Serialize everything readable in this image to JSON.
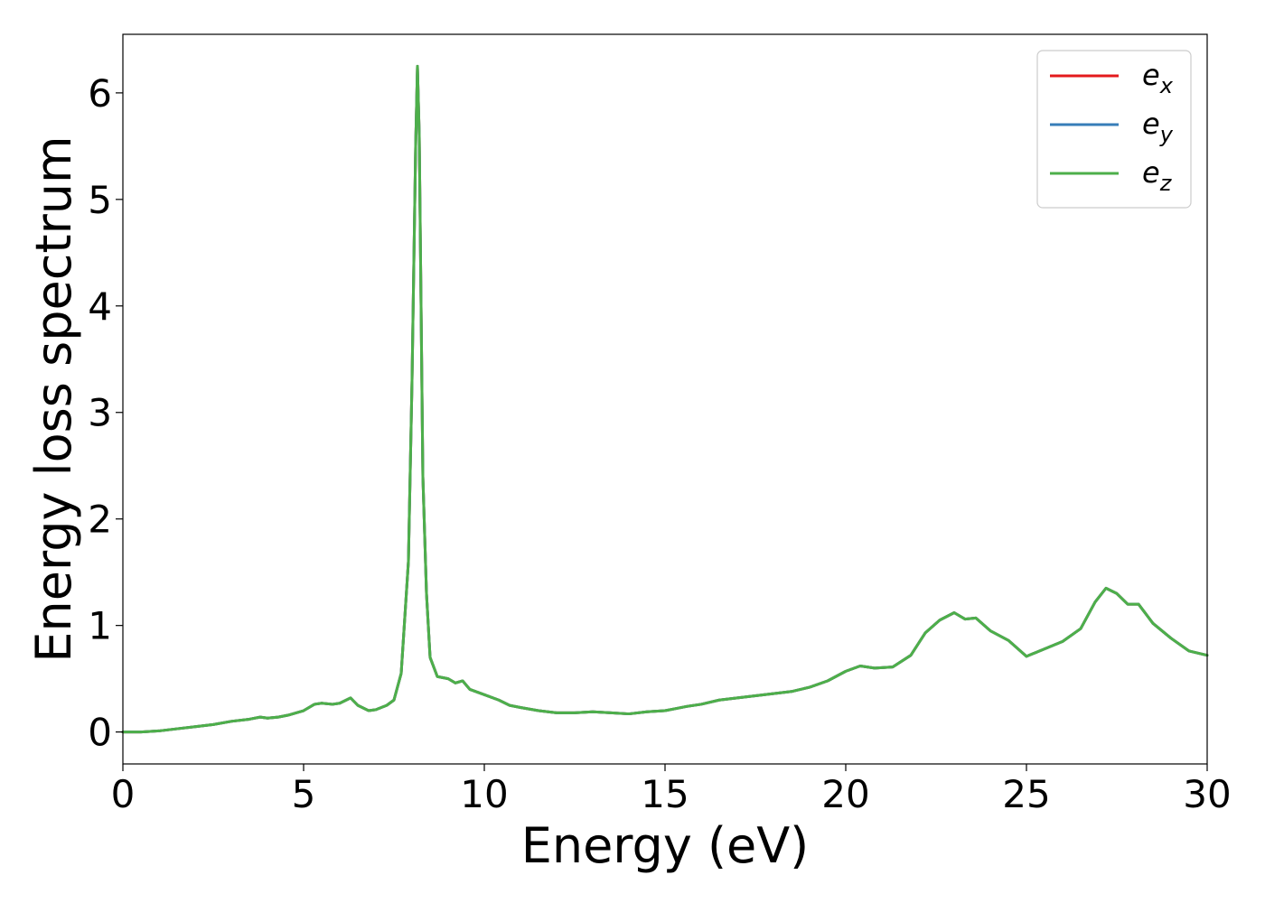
{
  "chart_data": {
    "type": "line",
    "title": "",
    "xlabel": "Energy (eV)",
    "ylabel": "Energy loss spectrum",
    "xlim": [
      0,
      30
    ],
    "ylim": [
      -0.3,
      6.55
    ],
    "xticks": [
      0,
      5,
      10,
      15,
      20,
      25,
      30
    ],
    "yticks": [
      0,
      1,
      2,
      3,
      4,
      5,
      6
    ],
    "grid": false,
    "legend_position": "top-right",
    "legend": [
      {
        "base": "e",
        "sub": "x",
        "color": "#e41a1c"
      },
      {
        "base": "e",
        "sub": "y",
        "color": "#377eb8"
      },
      {
        "base": "e",
        "sub": "z",
        "color": "#4daf4a"
      }
    ],
    "x": [
      0,
      0.5,
      1,
      1.5,
      2,
      2.5,
      3,
      3.5,
      3.8,
      4,
      4.3,
      4.6,
      5,
      5.3,
      5.5,
      5.8,
      6,
      6.3,
      6.5,
      6.8,
      7,
      7.3,
      7.5,
      7.7,
      7.9,
      8.0,
      8.1,
      8.15,
      8.2,
      8.25,
      8.3,
      8.4,
      8.5,
      8.7,
      9.0,
      9.2,
      9.4,
      9.6,
      10,
      10.4,
      10.7,
      11,
      11.5,
      12,
      12.5,
      13,
      13.5,
      14,
      14.5,
      15,
      15.3,
      15.6,
      16,
      16.5,
      17,
      17.5,
      18,
      18.5,
      19,
      19.5,
      20,
      20.4,
      20.8,
      21.3,
      21.8,
      22.2,
      22.6,
      23.0,
      23.3,
      23.6,
      24.0,
      24.5,
      25.0,
      25.5,
      26.0,
      26.5,
      26.9,
      27.2,
      27.5,
      27.8,
      28.1,
      28.5,
      29.0,
      29.5,
      30.0
    ],
    "series": [
      {
        "name": "e_x",
        "color": "#e41a1c",
        "values": [
          0,
          0,
          0.01,
          0.03,
          0.05,
          0.07,
          0.1,
          0.12,
          0.14,
          0.13,
          0.14,
          0.16,
          0.2,
          0.26,
          0.27,
          0.26,
          0.27,
          0.32,
          0.25,
          0.2,
          0.21,
          0.25,
          0.3,
          0.55,
          1.6,
          3.3,
          5.5,
          6.25,
          5.6,
          4.0,
          2.4,
          1.3,
          0.7,
          0.52,
          0.5,
          0.46,
          0.48,
          0.4,
          0.35,
          0.3,
          0.25,
          0.23,
          0.2,
          0.18,
          0.18,
          0.19,
          0.18,
          0.17,
          0.19,
          0.2,
          0.22,
          0.24,
          0.26,
          0.3,
          0.32,
          0.34,
          0.36,
          0.38,
          0.42,
          0.48,
          0.57,
          0.62,
          0.6,
          0.61,
          0.72,
          0.93,
          1.05,
          1.12,
          1.06,
          1.07,
          0.95,
          0.86,
          0.71,
          0.78,
          0.85,
          0.97,
          1.22,
          1.35,
          1.3,
          1.2,
          1.2,
          1.02,
          0.88,
          0.76,
          0.72
        ]
      },
      {
        "name": "e_y",
        "color": "#377eb8",
        "values": [
          0,
          0,
          0.01,
          0.03,
          0.05,
          0.07,
          0.1,
          0.12,
          0.14,
          0.13,
          0.14,
          0.16,
          0.2,
          0.26,
          0.27,
          0.26,
          0.27,
          0.32,
          0.25,
          0.2,
          0.21,
          0.25,
          0.3,
          0.55,
          1.6,
          3.3,
          5.5,
          6.25,
          5.6,
          4.0,
          2.4,
          1.3,
          0.7,
          0.52,
          0.5,
          0.46,
          0.48,
          0.4,
          0.35,
          0.3,
          0.25,
          0.23,
          0.2,
          0.18,
          0.18,
          0.19,
          0.18,
          0.17,
          0.19,
          0.2,
          0.22,
          0.24,
          0.26,
          0.3,
          0.32,
          0.34,
          0.36,
          0.38,
          0.42,
          0.48,
          0.57,
          0.62,
          0.6,
          0.61,
          0.72,
          0.93,
          1.05,
          1.12,
          1.06,
          1.07,
          0.95,
          0.86,
          0.71,
          0.78,
          0.85,
          0.97,
          1.22,
          1.35,
          1.3,
          1.2,
          1.2,
          1.02,
          0.88,
          0.76,
          0.72
        ]
      },
      {
        "name": "e_z",
        "color": "#4daf4a",
        "values": [
          0,
          0,
          0.01,
          0.03,
          0.05,
          0.07,
          0.1,
          0.12,
          0.14,
          0.13,
          0.14,
          0.16,
          0.2,
          0.26,
          0.27,
          0.26,
          0.27,
          0.32,
          0.25,
          0.2,
          0.21,
          0.25,
          0.3,
          0.55,
          1.6,
          3.3,
          5.5,
          6.25,
          5.6,
          4.0,
          2.4,
          1.3,
          0.7,
          0.52,
          0.5,
          0.46,
          0.48,
          0.4,
          0.35,
          0.3,
          0.25,
          0.23,
          0.2,
          0.18,
          0.18,
          0.19,
          0.18,
          0.17,
          0.19,
          0.2,
          0.22,
          0.24,
          0.26,
          0.3,
          0.32,
          0.34,
          0.36,
          0.38,
          0.42,
          0.48,
          0.57,
          0.62,
          0.6,
          0.61,
          0.72,
          0.93,
          1.05,
          1.12,
          1.06,
          1.07,
          0.95,
          0.86,
          0.71,
          0.78,
          0.85,
          0.97,
          1.22,
          1.35,
          1.3,
          1.2,
          1.2,
          1.02,
          0.88,
          0.76,
          0.72
        ]
      }
    ]
  }
}
